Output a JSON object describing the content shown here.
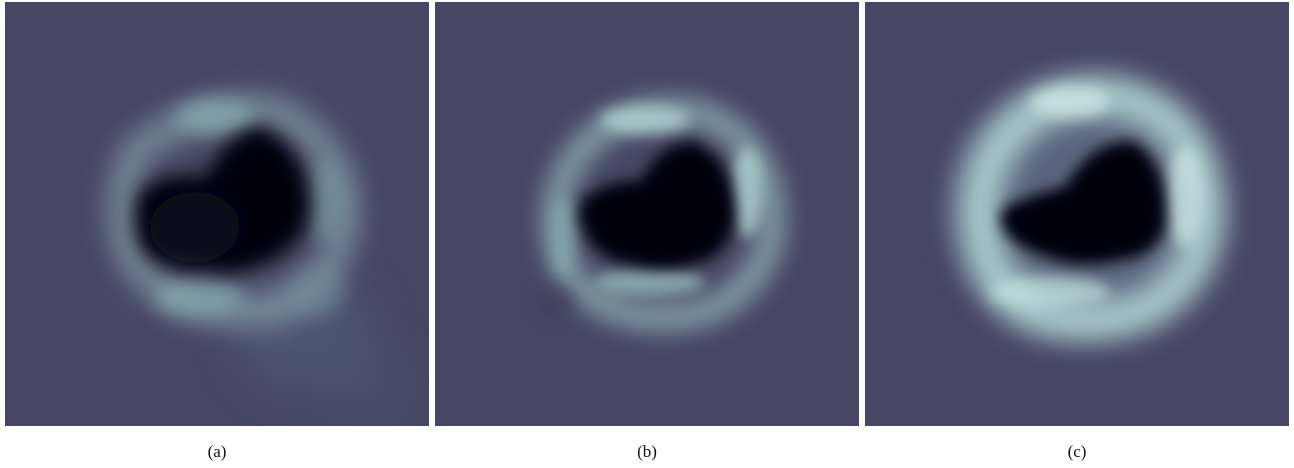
{
  "figure": {
    "background_color": "#464664",
    "colors": {
      "ring": "#a8d2cf",
      "center": "#02020a"
    },
    "panels": [
      {
        "id": "a",
        "caption": "(a)"
      },
      {
        "id": "b",
        "caption": "(b)"
      },
      {
        "id": "c",
        "caption": "(c)"
      }
    ]
  }
}
